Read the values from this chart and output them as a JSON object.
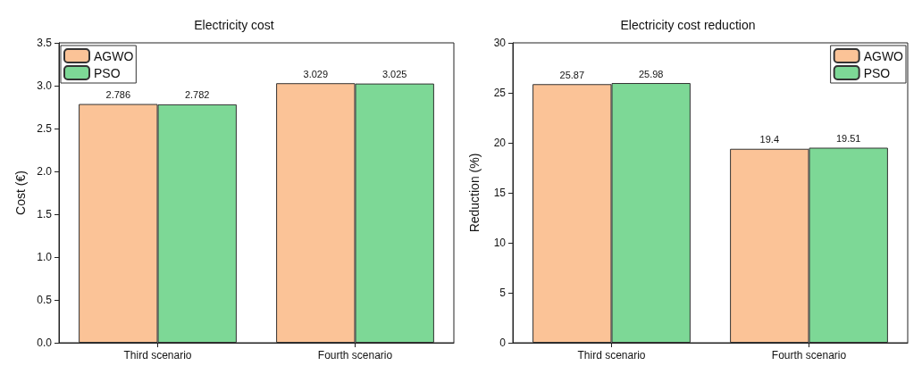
{
  "chart_data": [
    {
      "type": "bar",
      "title": "Electricity cost",
      "ylabel": "Cost (€)",
      "categories": [
        "Third scenario",
        "Fourth scenario"
      ],
      "series": [
        {
          "name": "AGWO",
          "color": "#fbc397",
          "values": [
            2.786,
            3.029
          ]
        },
        {
          "name": "PSO",
          "color": "#7dd896",
          "values": [
            2.782,
            3.025
          ]
        }
      ],
      "ylim": [
        0,
        3.5
      ],
      "yticks": [
        {
          "value": 0,
          "label": "0.0"
        },
        0.5,
        {
          "value": 1,
          "label": "1.0"
        },
        1.5,
        {
          "value": 2,
          "label": "2.0"
        },
        2.5,
        {
          "value": 3,
          "label": "3.0"
        },
        3.5
      ],
      "data_labels": true,
      "legend": "top left",
      "grid": false
    },
    {
      "type": "bar",
      "title": "Electricity cost reduction",
      "ylabel": "Reduction (%)",
      "categories": [
        "Third scenario",
        "Fourth scenario"
      ],
      "series": [
        {
          "name": "AGWO",
          "color": "#fbc397",
          "values": [
            25.87,
            19.4
          ]
        },
        {
          "name": "PSO",
          "color": "#7dd896",
          "values": [
            25.98,
            19.51
          ]
        }
      ],
      "ylim": [
        0,
        30
      ],
      "yticks": [
        0,
        5,
        10,
        15,
        20,
        25,
        30
      ],
      "data_labels": true,
      "legend": "top right",
      "grid": false
    }
  ]
}
